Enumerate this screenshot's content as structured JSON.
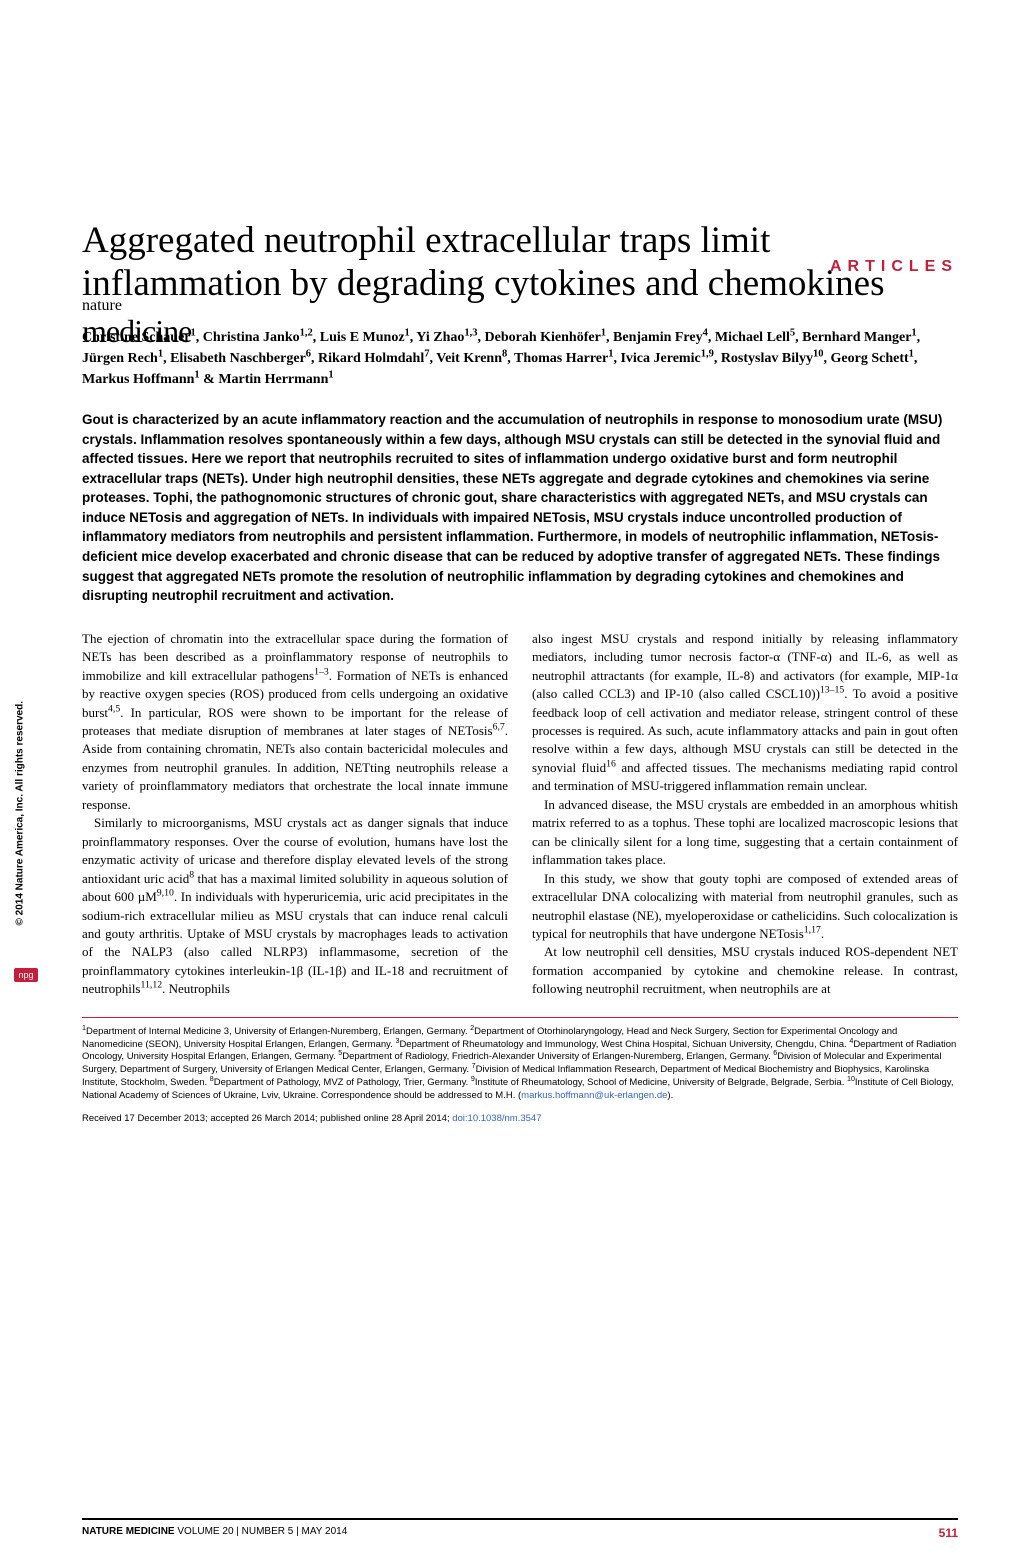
{
  "header": {
    "section_label": "ARTICLES",
    "logo_top": "nature",
    "logo_bottom": "medicine"
  },
  "colors": {
    "accent": "#c41e3a",
    "link": "#3366cc",
    "text": "#000000",
    "background": "#ffffff"
  },
  "title": "Aggregated neutrophil extracellular traps limit inflammation by degrading cytokines and chemokines",
  "authors_html": "Christine Schauer<sup>1</sup>, Christina Janko<sup>1,2</sup>, Luis E Munoz<sup>1</sup>, Yi Zhao<sup>1,3</sup>, Deborah Kienhöfer<sup>1</sup>, Benjamin Frey<sup>4</sup>, Michael Lell<sup>5</sup>, Bernhard Manger<sup>1</sup>, Jürgen Rech<sup>1</sup>, Elisabeth Naschberger<sup>6</sup>, Rikard Holmdahl<sup>7</sup>, Veit Krenn<sup>8</sup>, Thomas Harrer<sup>1</sup>, Ivica Jeremic<sup>1,9</sup>, Rostyslav Bilyy<sup>10</sup>, Georg Schett<sup>1</sup>, Markus Hoffmann<sup>1</sup> & Martin Herrmann<sup>1</sup>",
  "abstract": "Gout is characterized by an acute inflammatory reaction and the accumulation of neutrophils in response to monosodium urate (MSU) crystals. Inflammation resolves spontaneously within a few days, although MSU crystals can still be detected in the synovial fluid and affected tissues. Here we report that neutrophils recruited to sites of inflammation undergo oxidative burst and form neutrophil extracellular traps (NETs). Under high neutrophil densities, these NETs aggregate and degrade cytokines and chemokines via serine proteases. Tophi, the pathognomonic structures of chronic gout, share characteristics with aggregated NETs, and MSU crystals can induce NETosis and aggregation of NETs. In individuals with impaired NETosis, MSU crystals induce uncontrolled production of inflammatory mediators from neutrophils and persistent inflammation. Furthermore, in models of neutrophilic inflammation, NETosis-deficient mice develop exacerbated and chronic disease that can be reduced by adoptive transfer of aggregated NETs. These findings suggest that aggregated NETs promote the resolution of  neutrophilic inflammation by degrading cytokines and chemokines and disrupting neutrophil recruitment and activation.",
  "body": {
    "p1": "The ejection of chromatin into the extracellular space during the formation of NETs has been described as a proinflammatory response of neutrophils to immobilize and kill extracellular pathogens<sup>1–3</sup>. Formation of NETs is enhanced by reactive oxygen species (ROS) produced from cells undergoing an oxidative burst<sup>4,5</sup>. In particular, ROS were shown to be important for the release of proteases that mediate disruption of membranes at later stages of NETosis<sup>6,7</sup>. Aside from containing chromatin, NETs also contain bactericidal molecules and enzymes from neutrophil granules. In addition, NETting neutrophils release a variety of proinflammatory mediators that orchestrate the local innate immune response.",
    "p2": "Similarly to microorganisms, MSU crystals act as danger signals that induce proinflammatory responses. Over the course of evolution, humans have lost the enzymatic activity of uricase and therefore display elevated levels of the strong antioxidant uric acid<sup>8</sup> that has a maximal limited solubility in aqueous solution of about 600 µM<sup>9,10</sup>. In individuals with hyperuricemia, uric acid precipitates in the sodium-rich extracellular milieu as MSU crystals that can induce renal calculi and gouty arthritis. Uptake of MSU crystals by macrophages leads to activation of the NALP3 (also called NLRP3) inflammasome, secretion of the proinflammatory cytokines interleukin-1β (IL-1β) and IL-18 and recruitment of neutrophils<sup>11,12</sup>. Neutrophils",
    "p3": "also ingest MSU crystals and respond initially by releasing inflammatory mediators, including tumor necrosis factor-α (TNF-α) and IL-6, as well as neutrophil attractants (for example, IL-8) and activators (for example, MIP-1α (also called CCL3) and IP-10 (also called CSCL10))<sup>13–15</sup>. To avoid a positive feedback loop of cell activation and mediator release, stringent control of these processes is required. As such, acute inflammatory attacks and pain in gout often resolve within a few days, although MSU crystals can still be detected in the synovial fluid<sup>16</sup> and affected tissues. The mechanisms mediating rapid control and termination of MSU-triggered inflammation remain unclear.",
    "p4": "In advanced disease, the MSU crystals are embedded in an amorphous whitish matrix referred to as a tophus. These tophi are localized macroscopic lesions that can be clinically silent for a long time, suggesting that a certain containment of inflammation takes place.",
    "p5": "In this study, we show that gouty tophi are composed of extended areas of extracellular DNA colocalizing with material from neutrophil granules, such as neutrophil elastase (NE), myeloperoxidase or cathelicidins. Such colocalization is typical for neutrophils that have undergone NETosis<sup>1,17</sup>.",
    "p6": "At low neutrophil cell densities, MSU crystals induced ROS-dependent NET formation accompanied by cytokine and chemokine release. In contrast, following neutrophil recruitment, when neutrophils are at"
  },
  "affiliations_html": "<sup>1</sup>Department of Internal Medicine 3, University of Erlangen-Nuremberg, Erlangen, Germany. <sup>2</sup>Department of Otorhinolaryngology, Head and Neck Surgery, Section for Experimental Oncology and Nanomedicine (SEON), University Hospital Erlangen, Erlangen, Germany. <sup>3</sup>Department of Rheumatology and Immunology, West China Hospital, Sichuan University, Chengdu, China. <sup>4</sup>Department of Radiation Oncology, University Hospital Erlangen, Erlangen, Germany. <sup>5</sup>Department of Radiology, Friedrich-Alexander University of Erlangen-Nuremberg, Erlangen, Germany. <sup>6</sup>Division of Molecular and Experimental Surgery, Department of Surgery, University of Erlangen Medical Center, Erlangen, Germany. <sup>7</sup>Division of Medical Inflammation Research, Department of Medical Biochemistry and Biophysics, Karolinska Institute, Stockholm, Sweden. <sup>8</sup>Department of Pathology, MVZ of Pathology, Trier, Germany. <sup>9</sup>Institute of Rheumatology, School of Medicine, University of Belgrade, Belgrade, Serbia. <sup>10</sup>Institute of Cell Biology, National Academy of Sciences of Ukraine, Lviv, Ukraine. Correspondence should be addressed to M.H. (<a>markus.hoffmann@uk-erlangen.de</a>).",
  "received_html": "Received 17 December 2013; accepted 26 March 2014; published online 28 April 2014; <a>doi:10.1038/nm.3547</a>",
  "footer": {
    "journal": "NATURE MEDICINE",
    "issue": "  VOLUME 20 | NUMBER 5 | MAY 2014",
    "page": "511"
  },
  "sidebar": {
    "copyright": "© 2014 Nature America, Inc. All rights reserved.",
    "badge": "npg"
  }
}
